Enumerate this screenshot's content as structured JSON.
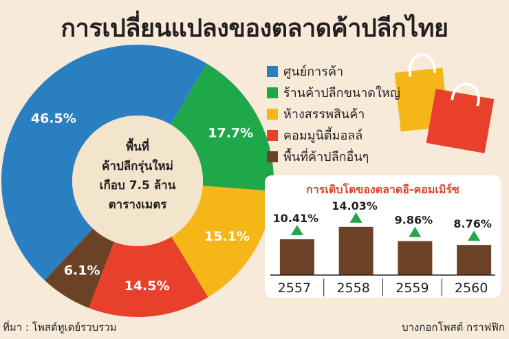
{
  "title": "การเปลี่ยนแปลงของตลาดค้าปลีกไทย",
  "chart_data": [
    {
      "type": "pie",
      "categories": [
        "ศูนย์การค้า",
        "ร้านค้าปลีกขนาดใหญ่",
        "ห้างสรรพสินค้า",
        "คอมมูนิตี้มอลล์",
        "พื้นที่ค้าปลีกอื่นๆ"
      ],
      "values": [
        46.5,
        17.7,
        15.1,
        14.5,
        6.1
      ],
      "value_labels": [
        "46.5%",
        "17.7%",
        "15.1%",
        "14.5%",
        "6.1%"
      ],
      "colors": [
        "#2a7fc1",
        "#1fa84a",
        "#f5b718",
        "#e8402a",
        "#6b4226"
      ],
      "legend": "right",
      "center_text": [
        "พื้นที่",
        "ค้าปลีกรุ่นใหม่",
        "เกือบ 7.5 ล้าน",
        "ตารางเมตร"
      ]
    },
    {
      "type": "bar",
      "title": "การเติบโตของตลาดอี-คอมเมิร์ซ",
      "categories": [
        "2557",
        "2558",
        "2559",
        "2560"
      ],
      "values": [
        10.41,
        14.03,
        9.86,
        8.76
      ],
      "value_labels": [
        "10.41%",
        "14.03%",
        "9.86%",
        "8.76%"
      ],
      "bar_color": "#6b4226",
      "arrow_color": "#1fa84a",
      "trend": "up"
    }
  ],
  "footer": {
    "source": "ที่มา : โพสต์ทูเดย์รวบรวม",
    "credit": "บางกอกโพสต์ กราฟฟิก"
  },
  "decorations": [
    "shopping-bag-icon",
    "shopping-bag-icon"
  ]
}
